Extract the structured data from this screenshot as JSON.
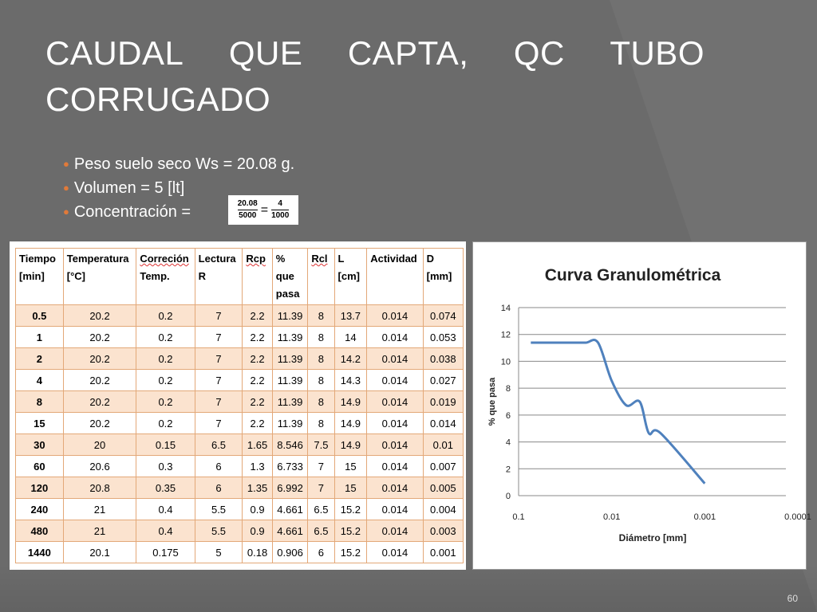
{
  "title": {
    "line1": [
      "CAUDAL",
      "QUE",
      "CAPTA,",
      "QC",
      "TUBO"
    ],
    "line2": "CORRUGADO"
  },
  "bullets": [
    "Peso suelo seco Ws = 20.08 g.",
    "Volumen = 5 [lt]",
    "Concentración ="
  ],
  "formula": {
    "num1": "20.08",
    "den1": "5000",
    "eq": "=",
    "num2": "4",
    "den2": "1000"
  },
  "table": {
    "headers": [
      [
        "Tiempo",
        "[min]"
      ],
      [
        "Temperatura",
        "[°C]"
      ],
      [
        "Correción",
        "Temp."
      ],
      [
        "Lectura",
        "R"
      ],
      [
        "Rcp"
      ],
      [
        "%",
        "que",
        "pasa"
      ],
      [
        "Rcl"
      ],
      [
        "L",
        "[cm]"
      ],
      [
        "Actividad"
      ],
      [
        "D",
        "[mm]"
      ]
    ],
    "rows": [
      [
        "0.5",
        "20.2",
        "0.2",
        "7",
        "2.2",
        "11.39",
        "8",
        "13.7",
        "0.014",
        "0.074"
      ],
      [
        "1",
        "20.2",
        "0.2",
        "7",
        "2.2",
        "11.39",
        "8",
        "14",
        "0.014",
        "0.053"
      ],
      [
        "2",
        "20.2",
        "0.2",
        "7",
        "2.2",
        "11.39",
        "8",
        "14.2",
        "0.014",
        "0.038"
      ],
      [
        "4",
        "20.2",
        "0.2",
        "7",
        "2.2",
        "11.39",
        "8",
        "14.3",
        "0.014",
        "0.027"
      ],
      [
        "8",
        "20.2",
        "0.2",
        "7",
        "2.2",
        "11.39",
        "8",
        "14.9",
        "0.014",
        "0.019"
      ],
      [
        "15",
        "20.2",
        "0.2",
        "7",
        "2.2",
        "11.39",
        "8",
        "14.9",
        "0.014",
        "0.014"
      ],
      [
        "30",
        "20",
        "0.15",
        "6.5",
        "1.65",
        "8.546",
        "7.5",
        "14.9",
        "0.014",
        "0.01"
      ],
      [
        "60",
        "20.6",
        "0.3",
        "6",
        "1.3",
        "6.733",
        "7",
        "15",
        "0.014",
        "0.007"
      ],
      [
        "120",
        "20.8",
        "0.35",
        "6",
        "1.35",
        "6.992",
        "7",
        "15",
        "0.014",
        "0.005"
      ],
      [
        "240",
        "21",
        "0.4",
        "5.5",
        "0.9",
        "4.661",
        "6.5",
        "15.2",
        "0.014",
        "0.004"
      ],
      [
        "480",
        "21",
        "0.4",
        "5.5",
        "0.9",
        "4.661",
        "6.5",
        "15.2",
        "0.014",
        "0.003"
      ],
      [
        "1440",
        "20.1",
        "0.175",
        "5",
        "0.18",
        "0.906",
        "6",
        "15.2",
        "0.014",
        "0.001"
      ]
    ]
  },
  "chart_data": {
    "type": "line",
    "title": "Curva Granulométrica",
    "xlabel": "Diámetro [mm]",
    "ylabel": "% que pasa",
    "x_scale": "log-reversed",
    "xlim": [
      0.1,
      0.0001
    ],
    "ylim": [
      0,
      14
    ],
    "x_ticks": [
      "0.1",
      "0.01",
      "0.001",
      "0.0001"
    ],
    "y_ticks": [
      "0",
      "2",
      "4",
      "6",
      "8",
      "10",
      "12",
      "14"
    ],
    "grid": "horizontal",
    "legend": "none",
    "series_color": "#4f81bd",
    "series": [
      {
        "x": [
          0.074,
          0.053,
          0.038,
          0.027,
          0.019,
          0.014,
          0.01,
          0.007,
          0.005,
          0.004,
          0.003,
          0.001
        ],
        "y": [
          11.39,
          11.39,
          11.39,
          11.39,
          11.39,
          11.39,
          8.546,
          6.733,
          6.992,
          4.661,
          4.661,
          0.906
        ]
      }
    ]
  },
  "slide_number": "60"
}
